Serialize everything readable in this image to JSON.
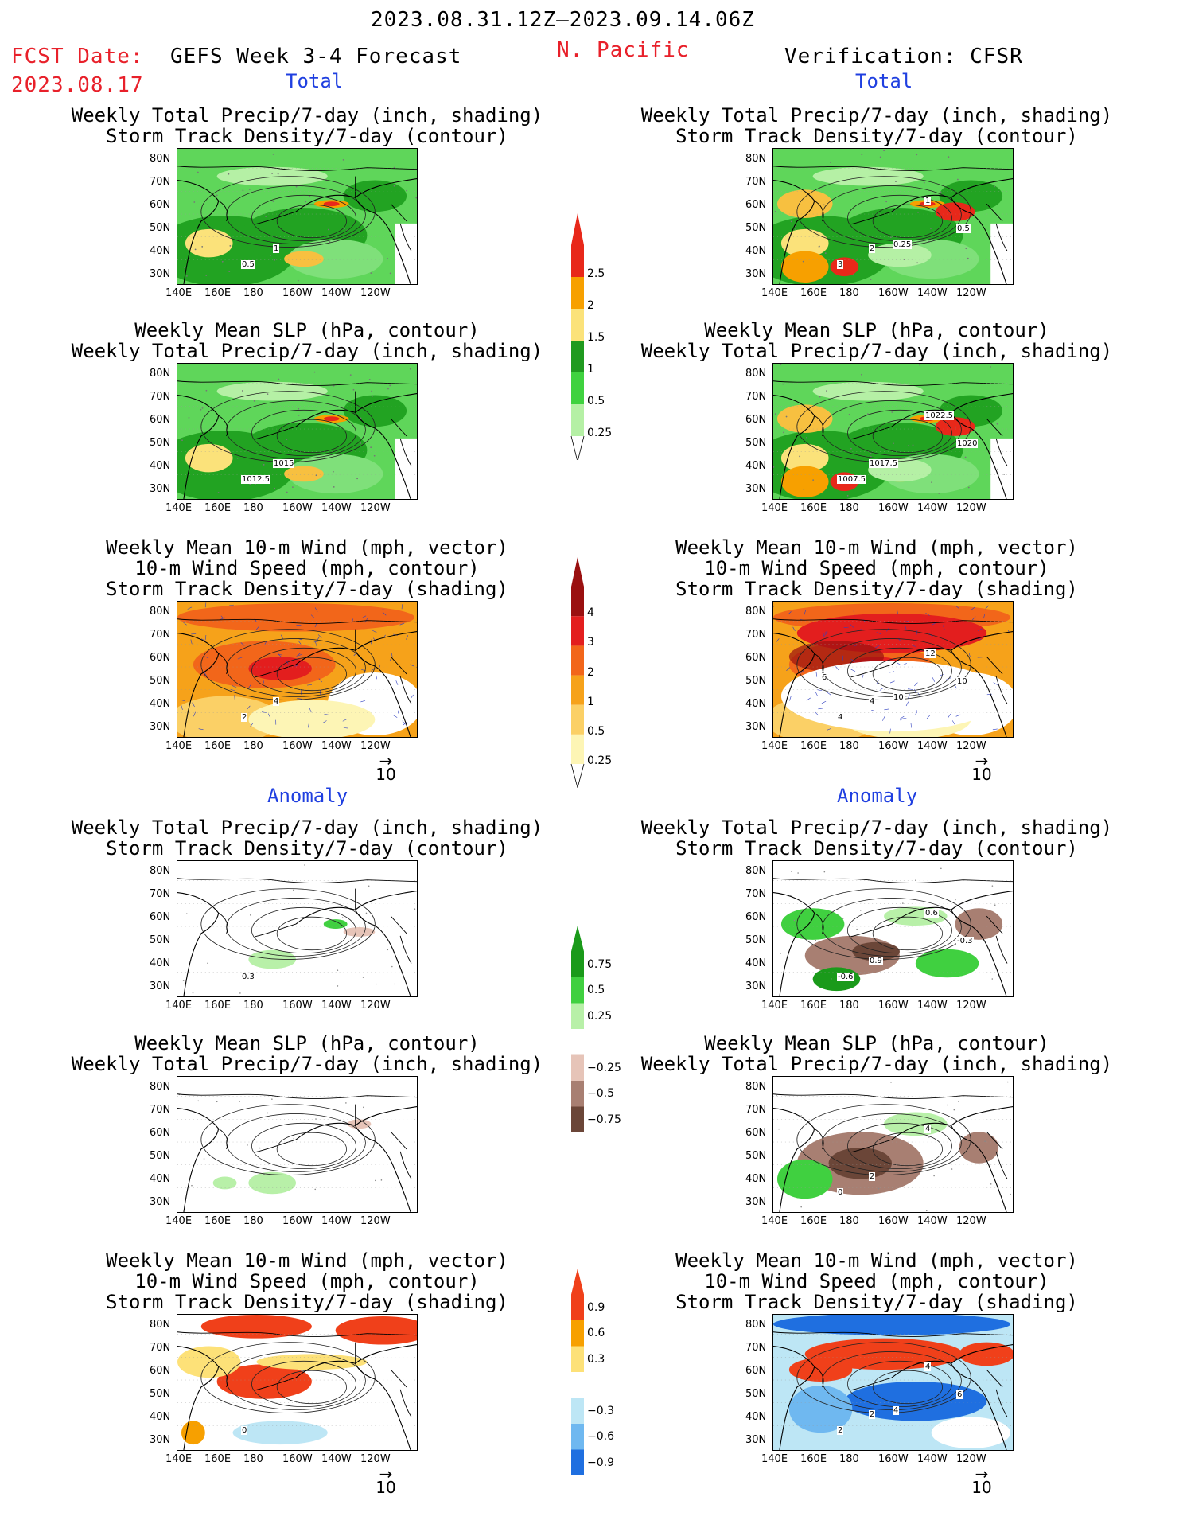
{
  "header": {
    "period": "2023.08.31.12Z–2023.09.14.06Z",
    "region": "N. Pacific",
    "fcst_label": "FCST Date:",
    "fcst_date": "2023.08.17",
    "model": "GEFS Week 3-4 Forecast",
    "verification": "Verification: CFSR"
  },
  "sections": {
    "total": "Total",
    "anomaly": "Anomaly"
  },
  "titles": {
    "precip_storm": [
      "Weekly Total Precip/7-day (inch, shading)",
      "Storm Track Density/7-day (contour)"
    ],
    "slp_precip": [
      "Weekly Mean SLP (hPa, contour)",
      "Weekly Total Precip/7-day (inch, shading)"
    ],
    "wind_storm": [
      "Weekly Mean 10-m Wind (mph, vector)",
      "10-m Wind Speed (mph, contour)",
      "Storm Track Density/7-day (shading)"
    ]
  },
  "axes": {
    "lat_labels": [
      "80N",
      "70N",
      "60N",
      "50N",
      "40N",
      "30N"
    ],
    "lon_labels": [
      "140E",
      "160E",
      "180",
      "160W",
      "140W",
      "120W"
    ]
  },
  "vector_ref": {
    "arrow": "→",
    "value": "10"
  },
  "colorbars": [
    {
      "id": "precip_total",
      "labels": [
        "2.5",
        "2",
        "1.5",
        "1",
        "0.5",
        "0.25"
      ],
      "colors": [
        "#e8281a",
        "#f7a000",
        "#fbe27a",
        "#1f9a1f",
        "#3fd23f",
        "#b5f0a5"
      ]
    },
    {
      "id": "storm_total",
      "labels": [
        "4",
        "3",
        "2",
        "1",
        "0.5",
        "0.25"
      ],
      "colors": [
        "#9a1010",
        "#e31e1e",
        "#f2661a",
        "#f6a21a",
        "#fbd066",
        "#fdf5b5"
      ]
    },
    {
      "id": "precip_anom",
      "labels": [
        "0.75",
        "0.5",
        "0.25",
        "−0.25",
        "−0.5",
        "−0.75"
      ],
      "colors": [
        "#1a9a1a",
        "#40d040",
        "#b8f0a8",
        "#ffffff",
        "#e6c4b8",
        "#a87f72",
        "#6b4638"
      ]
    },
    {
      "id": "storm_anom",
      "labels": [
        "0.9",
        "0.6",
        "0.3",
        "−0.3",
        "−0.6",
        "−0.9"
      ],
      "colors": [
        "#f0401a",
        "#f7a000",
        "#fde178",
        "#ffffff",
        "#bde6f5",
        "#6fb8f0",
        "#1f6fe0"
      ]
    }
  ],
  "panels": [
    {
      "id": "fcst_total_precip_storm",
      "contour_labels": [
        "0.5",
        "1"
      ]
    },
    {
      "id": "verif_total_precip_storm",
      "contour_labels": [
        "3",
        "2",
        "1",
        "0.5",
        "0.25"
      ]
    },
    {
      "id": "fcst_total_slp_precip",
      "contour_labels": [
        "1012.5",
        "1015"
      ]
    },
    {
      "id": "verif_total_slp_precip",
      "contour_labels": [
        "1007.5",
        "1017.5",
        "1022.5",
        "1020"
      ]
    },
    {
      "id": "fcst_total_wind_storm",
      "contour_labels": [
        "2",
        "4"
      ]
    },
    {
      "id": "verif_total_wind_storm",
      "contour_labels": [
        "4",
        "4",
        "12",
        "10",
        "10",
        "6"
      ]
    },
    {
      "id": "fcst_anom_precip_storm",
      "contour_labels": [
        "0.3"
      ]
    },
    {
      "id": "verif_anom_precip_storm",
      "contour_labels": [
        "-0.6",
        "0.9",
        "0.6",
        "-0.3"
      ]
    },
    {
      "id": "fcst_anom_slp_precip",
      "contour_labels": []
    },
    {
      "id": "verif_anom_slp_precip",
      "contour_labels": [
        "0",
        "2",
        "4"
      ]
    },
    {
      "id": "fcst_anom_wind_storm",
      "contour_labels": [
        "0"
      ]
    },
    {
      "id": "verif_anom_wind_storm",
      "contour_labels": [
        "2",
        "2",
        "4",
        "6",
        "4"
      ]
    }
  ]
}
